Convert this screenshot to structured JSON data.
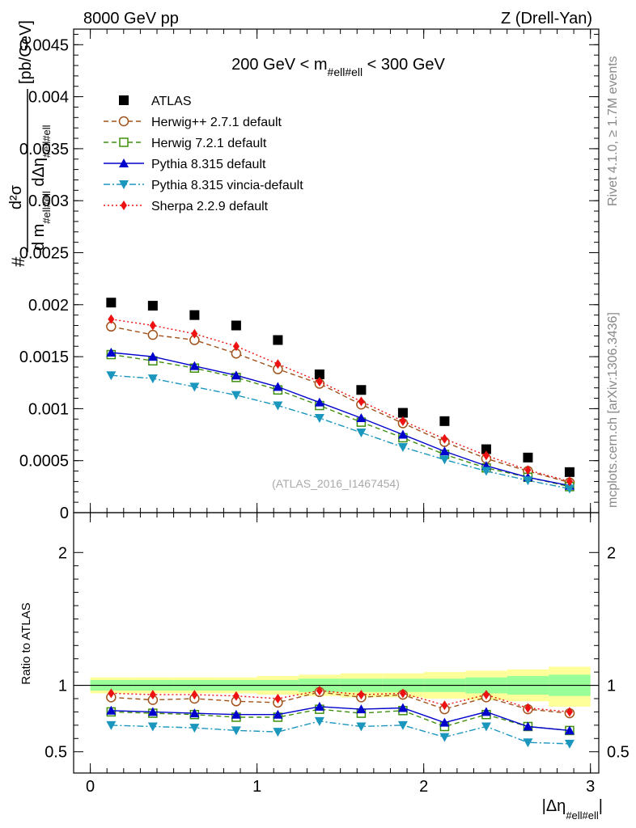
{
  "header": {
    "left": "8000 GeV pp",
    "right": "Z (Drell-Yan)"
  },
  "side_labels": {
    "rivet": "Rivet 4.1.0, ≥ 1.7M events",
    "mcplots": "mcplots.cern.ch [arXiv:1306.3436]"
  },
  "chart_data": [
    {
      "type": "line",
      "panel": "main",
      "title": "200 GeV < m#ell#ell < 300 GeV",
      "title_parts": {
        "pre": "200 GeV < m",
        "sub": "#ell#ell",
        "post": " < 300 GeV"
      },
      "watermark": "(ATLAS_2016_I1467454)",
      "ylabel_parts": {
        "num": "d²σ",
        "den_a": "d m",
        "den_sub": "#ell#ell",
        "den_b": " dΔη",
        "den_sub2": "#ell#ell",
        "unit": "[pb/GeV]",
        "hash": "#"
      },
      "xlim": [
        -0.1,
        3.05
      ],
      "ylim": [
        0,
        0.00465
      ],
      "y_ticks": [
        {
          "v": 0,
          "label": "0"
        },
        {
          "v": 0.0005,
          "label": "0.0005"
        },
        {
          "v": 0.001,
          "label": "0.001"
        },
        {
          "v": 0.0015,
          "label": "0.0015"
        },
        {
          "v": 0.002,
          "label": "0.002"
        },
        {
          "v": 0.0025,
          "label": "0.0025"
        },
        {
          "v": 0.003,
          "label": "0.003"
        },
        {
          "v": 0.0035,
          "label": "0.0035"
        },
        {
          "v": 0.004,
          "label": "0.004"
        },
        {
          "v": 0.0045,
          "label": "0.0045"
        }
      ],
      "x": [
        0.125,
        0.375,
        0.625,
        0.875,
        1.125,
        1.375,
        1.625,
        1.875,
        2.125,
        2.375,
        2.625,
        2.875
      ],
      "series": [
        {
          "name": "ATLAS",
          "style": "data",
          "marker": "square",
          "color": "#000000",
          "values": [
            0.00202,
            0.00199,
            0.0019,
            0.0018,
            0.00166,
            0.00133,
            0.00118,
            0.00096,
            0.00088,
            0.00061,
            0.00053,
            0.00039
          ]
        },
        {
          "name": "Herwig++ 2.7.1 default",
          "style": "dashed",
          "marker": "circle-open",
          "color": "#a0521a",
          "values": [
            0.00179,
            0.00171,
            0.00166,
            0.00153,
            0.00138,
            0.00124,
            0.00104,
            0.00086,
            0.00068,
            0.00052,
            0.0004,
            0.00029
          ]
        },
        {
          "name": "Herwig 7.2.1 default",
          "style": "dashed",
          "marker": "square-open",
          "color": "#3f8f0f",
          "values": [
            0.00152,
            0.00146,
            0.00139,
            0.0013,
            0.00118,
            0.00103,
            0.00087,
            0.00072,
            0.00056,
            0.00043,
            0.00034,
            0.00025
          ]
        },
        {
          "name": "Pythia 8.315 default",
          "style": "solid",
          "marker": "triangle-up",
          "color": "#0000cc",
          "values": [
            0.00154,
            0.0015,
            0.00141,
            0.00132,
            0.00121,
            0.00106,
            0.00091,
            0.00075,
            0.00059,
            0.00045,
            0.00034,
            0.00026
          ]
        },
        {
          "name": "Pythia 8.315 vincia-default",
          "style": "dashdot",
          "marker": "triangle-down",
          "color": "#1b96bd",
          "values": [
            0.00132,
            0.00129,
            0.00121,
            0.00113,
            0.00103,
            0.00091,
            0.00077,
            0.00063,
            0.00051,
            0.0004,
            0.00031,
            0.00023
          ]
        },
        {
          "name": "Sherpa 2.2.9 default",
          "style": "dotted",
          "marker": "diamond",
          "color": "#ee1111",
          "values": [
            0.00186,
            0.0018,
            0.00172,
            0.0016,
            0.00143,
            0.00126,
            0.00107,
            0.00088,
            0.00071,
            0.00055,
            0.00041,
            0.0003
          ]
        }
      ]
    },
    {
      "type": "line",
      "panel": "ratio",
      "ylabel": "Ratio to ATLAS",
      "xlabel_parts": {
        "pre": "|Δη",
        "sub": "#ell#ell",
        "post": "|"
      },
      "xlim": [
        -0.1,
        3.05
      ],
      "ylim": [
        0.34,
        2.3
      ],
      "x_ticks": [
        {
          "v": 0,
          "label": "0"
        },
        {
          "v": 1,
          "label": "1"
        },
        {
          "v": 2,
          "label": "2"
        },
        {
          "v": 3,
          "label": "3"
        }
      ],
      "y_ticks": [
        {
          "v": 0.5,
          "label": "0.5"
        },
        {
          "v": 1,
          "label": "1"
        },
        {
          "v": 2,
          "label": "2"
        }
      ],
      "bin_edges": [
        0.0,
        0.25,
        0.5,
        0.75,
        1.0,
        1.25,
        1.5,
        1.75,
        2.0,
        2.25,
        2.5,
        2.75,
        3.0
      ],
      "bands": {
        "total": {
          "color": "#ffff99",
          "up": [
            1.06,
            1.06,
            1.06,
            1.06,
            1.07,
            1.08,
            1.09,
            1.09,
            1.1,
            1.11,
            1.12,
            1.14
          ],
          "down": [
            0.94,
            0.94,
            0.94,
            0.94,
            0.93,
            0.92,
            0.91,
            0.91,
            0.9,
            0.89,
            0.88,
            0.84
          ]
        },
        "stat": {
          "color": "#99ff99",
          "up": [
            1.04,
            1.04,
            1.04,
            1.04,
            1.04,
            1.05,
            1.05,
            1.05,
            1.05,
            1.06,
            1.07,
            1.08
          ],
          "down": [
            0.96,
            0.96,
            0.96,
            0.96,
            0.96,
            0.95,
            0.95,
            0.95,
            0.95,
            0.94,
            0.93,
            0.92
          ]
        }
      },
      "x": [
        0.125,
        0.375,
        0.625,
        0.875,
        1.125,
        1.375,
        1.625,
        1.875,
        2.125,
        2.375,
        2.625,
        2.875
      ],
      "series": [
        {
          "name": "Herwig++ 2.7.1 default",
          "style": "dashed",
          "marker": "circle-open",
          "color": "#a0521a",
          "values": [
            0.91,
            0.89,
            0.9,
            0.88,
            0.87,
            0.95,
            0.91,
            0.93,
            0.82,
            0.91,
            0.82,
            0.79
          ]
        },
        {
          "name": "Herwig 7.2.1 default",
          "style": "dashed",
          "marker": "square-open",
          "color": "#3f8f0f",
          "values": [
            0.8,
            0.79,
            0.78,
            0.76,
            0.76,
            0.82,
            0.79,
            0.81,
            0.69,
            0.78,
            0.69,
            0.66
          ]
        },
        {
          "name": "Pythia 8.315 default",
          "style": "solid",
          "marker": "triangle-up",
          "color": "#0000cc",
          "values": [
            0.81,
            0.8,
            0.79,
            0.78,
            0.78,
            0.84,
            0.82,
            0.83,
            0.72,
            0.8,
            0.69,
            0.66
          ]
        },
        {
          "name": "Pythia 8.315 vincia-default",
          "style": "dashdot",
          "marker": "triangle-down",
          "color": "#1b96bd",
          "values": [
            0.7,
            0.69,
            0.68,
            0.66,
            0.65,
            0.73,
            0.69,
            0.7,
            0.61,
            0.69,
            0.57,
            0.56
          ]
        },
        {
          "name": "Sherpa 2.2.9 default",
          "style": "dotted",
          "marker": "diamond",
          "color": "#ee1111",
          "values": [
            0.94,
            0.93,
            0.93,
            0.92,
            0.9,
            0.96,
            0.93,
            0.94,
            0.85,
            0.93,
            0.83,
            0.8
          ]
        }
      ]
    }
  ]
}
